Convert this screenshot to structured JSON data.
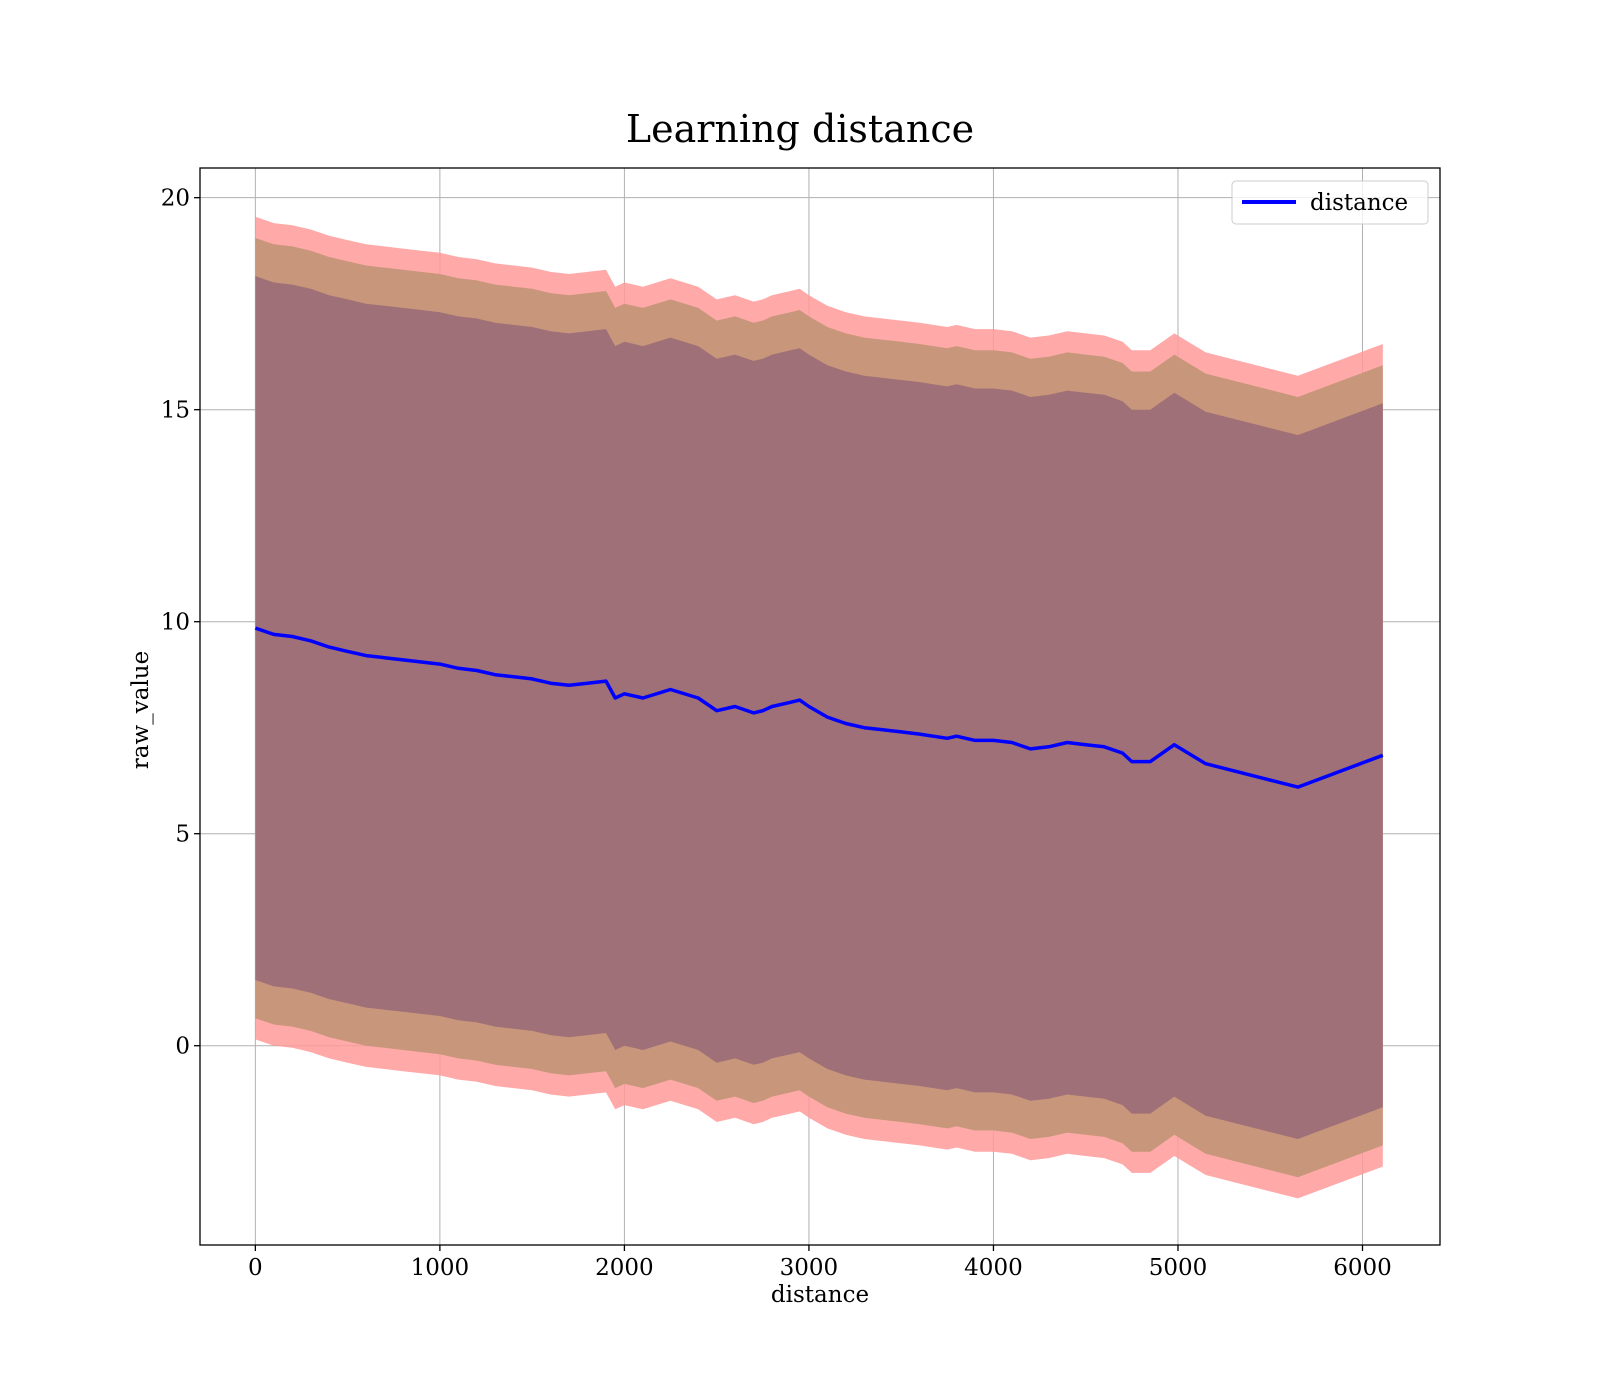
{
  "chart_data": {
    "type": "area",
    "title": "Learning distance",
    "xlabel": "distance",
    "ylabel": "raw_value",
    "xlim": [
      -300,
      6420
    ],
    "ylim": [
      -4.7,
      20.7
    ],
    "xticks": [
      0,
      1000,
      2000,
      3000,
      4000,
      5000,
      6000
    ],
    "yticks": [
      0,
      5,
      10,
      15,
      20
    ],
    "grid": true,
    "legend": {
      "position": "top-right",
      "entries": [
        "distance"
      ]
    },
    "colors": {
      "line": "#0000ff",
      "band_outer": "#ff9a9a",
      "band_middle": "#c8967a",
      "band_inner": "#a07078",
      "grid": "#b0b0b0"
    },
    "series": [
      {
        "name": "distance",
        "x": [
          0,
          100,
          200,
          300,
          400,
          500,
          600,
          700,
          800,
          900,
          1000,
          1100,
          1200,
          1300,
          1400,
          1500,
          1600,
          1700,
          1800,
          1900,
          1950,
          2000,
          2100,
          2250,
          2400,
          2500,
          2600,
          2700,
          2750,
          2800,
          2900,
          2950,
          3000,
          3100,
          3200,
          3300,
          3400,
          3500,
          3600,
          3750,
          3800,
          3900,
          4000,
          4100,
          4200,
          4300,
          4400,
          4500,
          4600,
          4700,
          4750,
          4850,
          4980,
          5150,
          5650,
          6110
        ],
        "y": [
          9.85,
          9.7,
          9.65,
          9.55,
          9.4,
          9.3,
          9.2,
          9.15,
          9.1,
          9.05,
          9.0,
          8.9,
          8.85,
          8.75,
          8.7,
          8.65,
          8.55,
          8.5,
          8.55,
          8.6,
          8.2,
          8.3,
          8.2,
          8.4,
          8.2,
          7.9,
          8.0,
          7.85,
          7.9,
          8.0,
          8.1,
          8.15,
          8.0,
          7.75,
          7.6,
          7.5,
          7.45,
          7.4,
          7.35,
          7.25,
          7.3,
          7.2,
          7.2,
          7.15,
          7.0,
          7.05,
          7.15,
          7.1,
          7.05,
          6.9,
          6.7,
          6.7,
          7.1,
          6.65,
          6.1,
          6.85
        ]
      }
    ],
    "bands": [
      {
        "name": "outer",
        "half_width": 9.7
      },
      {
        "name": "middle",
        "half_width": 9.2
      },
      {
        "name": "inner",
        "half_width": 8.3
      }
    ]
  }
}
